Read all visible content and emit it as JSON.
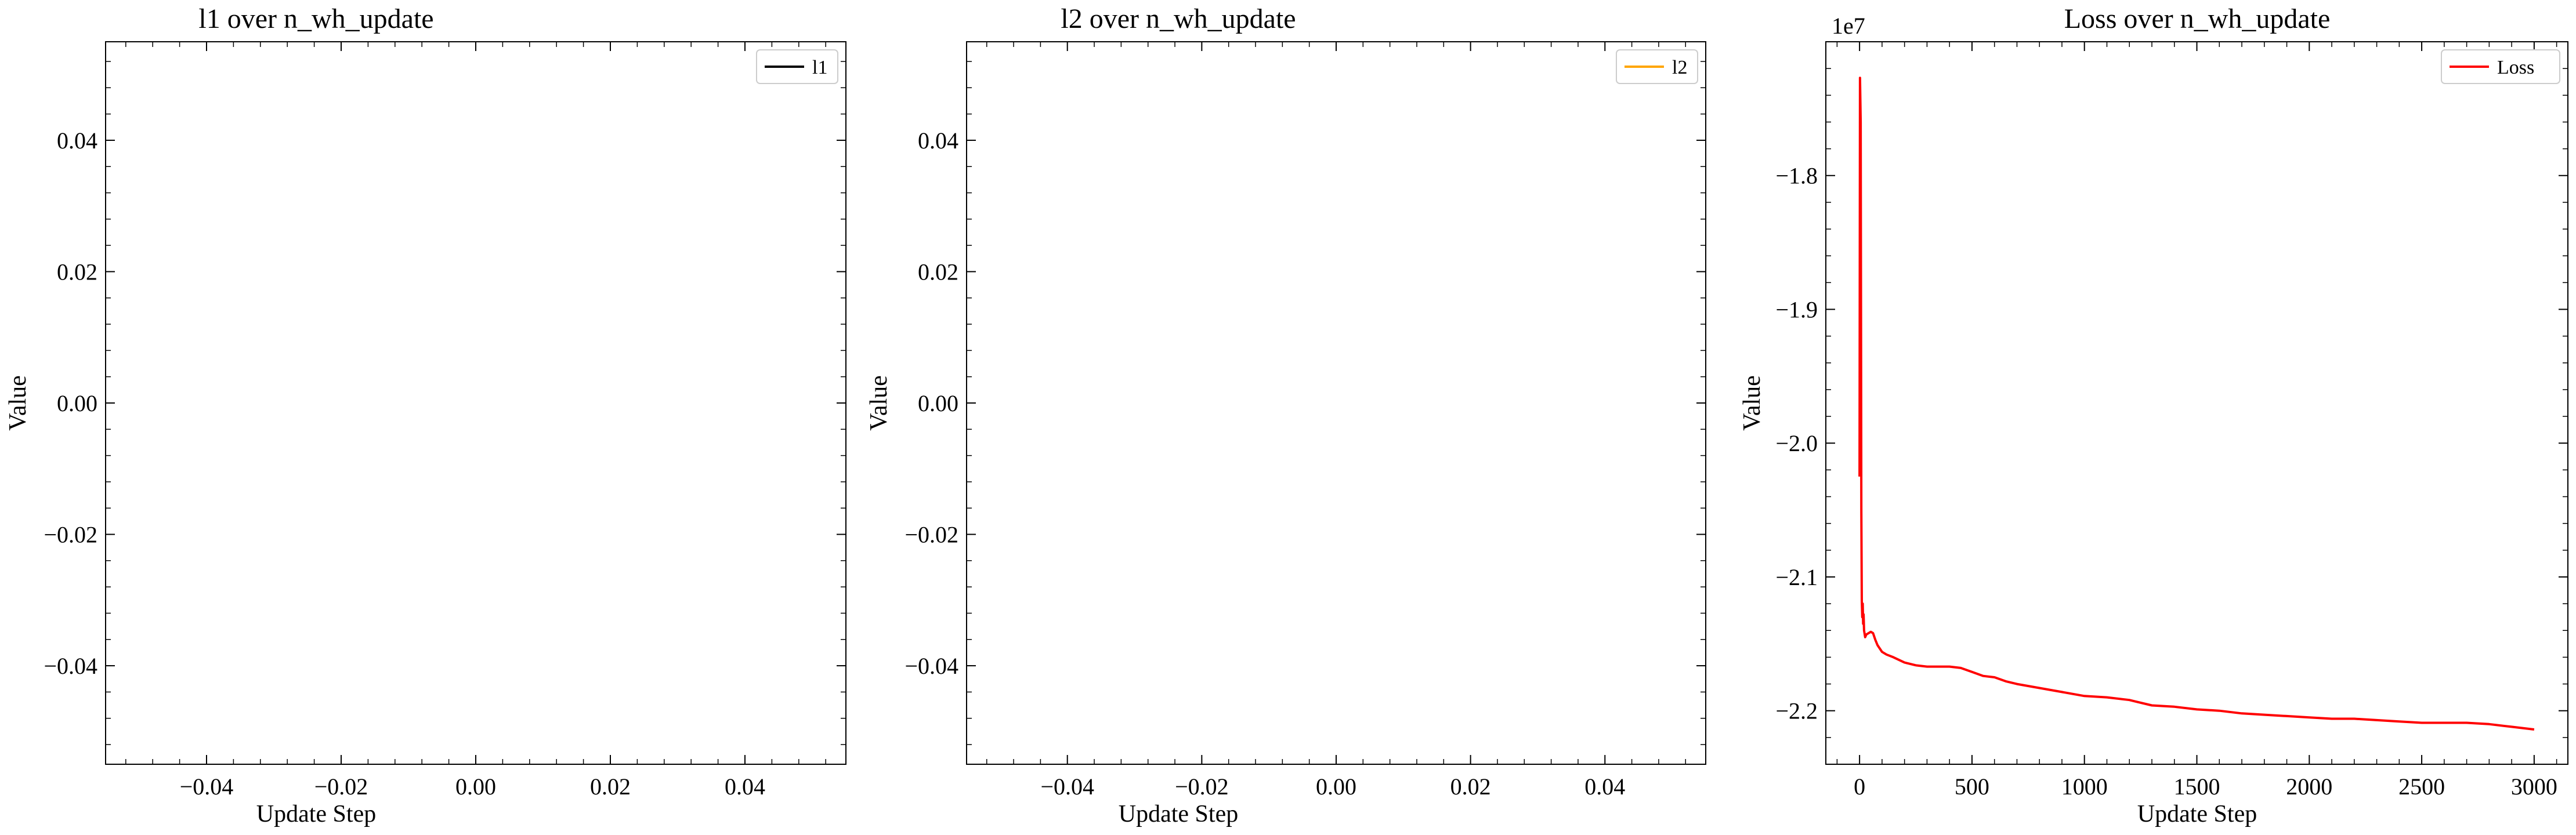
{
  "chart_data": [
    {
      "type": "line",
      "title": "l1 over n_wh_update",
      "xlabel": "Update Step",
      "ylabel": "Value",
      "xlim": [
        -0.055,
        0.055
      ],
      "ylim": [
        -0.055,
        0.055
      ],
      "x_ticks": [
        -0.04,
        -0.02,
        0.0,
        0.02,
        0.04
      ],
      "y_ticks": [
        -0.04,
        -0.02,
        0.0,
        0.02,
        0.04
      ],
      "x_tick_labels": [
        "−0.04",
        "−0.02",
        "0.00",
        "0.02",
        "0.04"
      ],
      "y_tick_labels": [
        "−0.04",
        "−0.02",
        "0.00",
        "0.02",
        "0.04"
      ],
      "legend_position": "top-right",
      "grid": false,
      "series": [
        {
          "name": "l1",
          "color": "#000000",
          "x": [],
          "y": []
        }
      ]
    },
    {
      "type": "line",
      "title": "l2 over n_wh_update",
      "xlabel": "Update Step",
      "ylabel": "Value",
      "xlim": [
        -0.055,
        0.055
      ],
      "ylim": [
        -0.055,
        0.055
      ],
      "x_ticks": [
        -0.04,
        -0.02,
        0.0,
        0.02,
        0.04
      ],
      "y_ticks": [
        -0.04,
        -0.02,
        0.0,
        0.02,
        0.04
      ],
      "x_tick_labels": [
        "−0.04",
        "−0.02",
        "0.00",
        "0.02",
        "0.04"
      ],
      "y_tick_labels": [
        "−0.04",
        "−0.02",
        "0.00",
        "0.02",
        "0.04"
      ],
      "legend_position": "top-right",
      "grid": false,
      "series": [
        {
          "name": "l2",
          "color": "#ffa500",
          "x": [],
          "y": []
        }
      ]
    },
    {
      "type": "line",
      "title": "Loss over n_wh_update",
      "xlabel": "Update Step",
      "ylabel": "Value",
      "offset_text": "1e7",
      "xlim": [
        -150,
        3150
      ],
      "ylim": [
        -22.4,
        -17.0
      ],
      "x_ticks": [
        0,
        500,
        1000,
        1500,
        2000,
        2500,
        3000
      ],
      "y_ticks": [
        -22.0,
        -21.0,
        -20.0,
        -19.0,
        -18.0
      ],
      "x_tick_labels": [
        "0",
        "500",
        "1000",
        "1500",
        "2000",
        "2500",
        "3000"
      ],
      "y_tick_labels": [
        "−2.2",
        "−2.1",
        "−2.0",
        "−1.9",
        "−1.8"
      ],
      "legend_position": "top-right",
      "grid": false,
      "series": [
        {
          "name": "Loss",
          "color": "#ff0000",
          "x": [
            0,
            2,
            5,
            8,
            10,
            12,
            14,
            16,
            18,
            20,
            25,
            30,
            40,
            50,
            60,
            70,
            80,
            100,
            120,
            150,
            200,
            250,
            300,
            350,
            400,
            450,
            500,
            550,
            600,
            650,
            700,
            800,
            900,
            1000,
            1100,
            1200,
            1300,
            1400,
            1500,
            1600,
            1700,
            1800,
            1900,
            2000,
            2100,
            2200,
            2300,
            2400,
            2500,
            2600,
            2700,
            2800,
            2900,
            3000
          ],
          "y": [
            -20.25,
            -17.27,
            -17.6,
            -20.5,
            -21.18,
            -21.3,
            -21.2,
            -21.35,
            -21.28,
            -21.4,
            -21.45,
            -21.43,
            -21.42,
            -21.41,
            -21.42,
            -21.47,
            -21.51,
            -21.56,
            -21.58,
            -21.6,
            -21.64,
            -21.66,
            -21.67,
            -21.67,
            -21.67,
            -21.68,
            -21.71,
            -21.74,
            -21.75,
            -21.78,
            -21.8,
            -21.83,
            -21.86,
            -21.89,
            -21.9,
            -21.92,
            -21.96,
            -21.97,
            -21.99,
            -22.0,
            -22.02,
            -22.03,
            -22.04,
            -22.05,
            -22.06,
            -22.06,
            -22.07,
            -22.08,
            -22.09,
            -22.09,
            -22.09,
            -22.1,
            -22.12,
            -22.14
          ]
        }
      ]
    }
  ]
}
